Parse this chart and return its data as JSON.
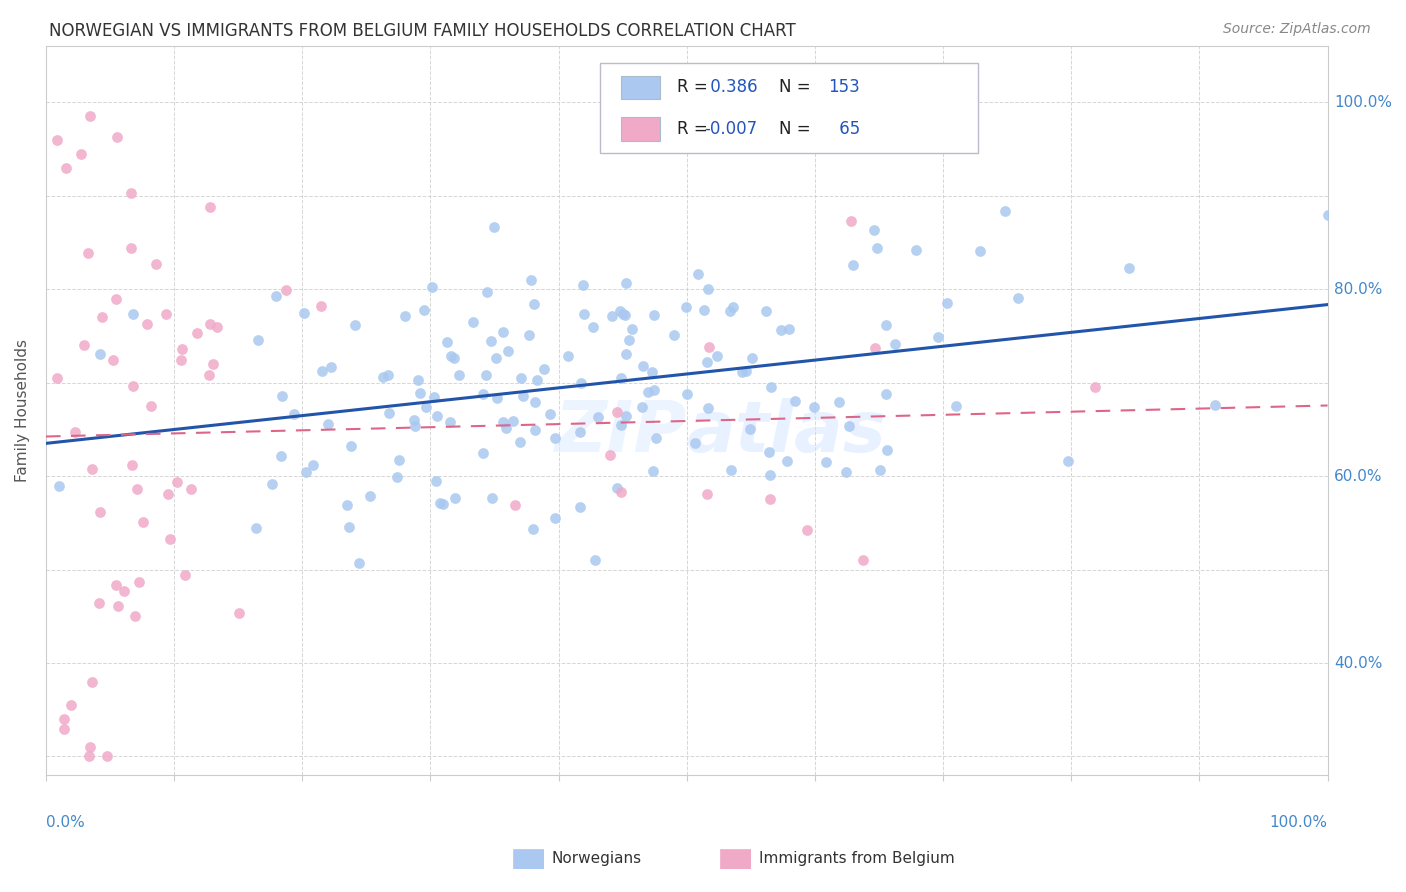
{
  "title": "NORWEGIAN VS IMMIGRANTS FROM BELGIUM FAMILY HOUSEHOLDS CORRELATION CHART",
  "source": "Source: ZipAtlas.com",
  "ylabel": "Family Households",
  "xlim": [
    0.0,
    1.0
  ],
  "ylim": [
    0.28,
    1.06
  ],
  "color_blue": "#aac8f0",
  "color_pink": "#f0aac8",
  "color_blue_line": "#2255aa",
  "color_pink_line": "#dd6688",
  "background_color": "#ffffff",
  "grid_color": "#cccccc",
  "right_yticks": [
    0.4,
    0.6,
    0.8,
    1.0
  ],
  "right_ytick_labels": [
    "40.0%",
    "60.0%",
    "80.0%",
    "100.0%"
  ],
  "watermark": "ZIPAtlas",
  "nor_seed": 12,
  "bel_seed": 7
}
